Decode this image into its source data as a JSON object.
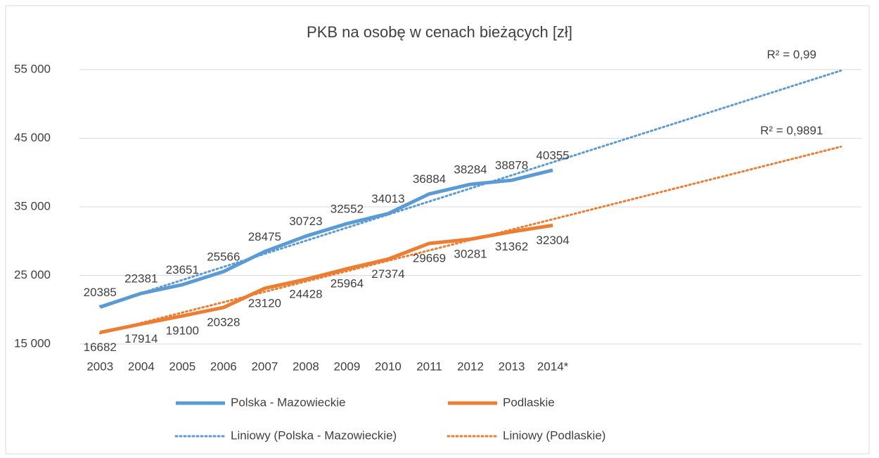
{
  "chart_data": {
    "type": "line",
    "title": "PKB na osobę w cenach bieżących [zł]",
    "categories": [
      "2003",
      "2004",
      "2005",
      "2006",
      "2007",
      "2008",
      "2009",
      "2010",
      "2011",
      "2012",
      "2013",
      "2014*",
      null,
      null,
      null,
      null,
      null,
      null,
      null
    ],
    "series": [
      {
        "name": "Polska - Mazowieckie",
        "color": "#5b9bd5",
        "values": [
          20385,
          22381,
          23651,
          25566,
          28475,
          30723,
          32552,
          34013,
          36884,
          38284,
          38878,
          40355,
          null,
          null,
          null,
          null,
          null,
          null,
          null
        ],
        "trendline": {
          "name": "Liniowy (Polska - Mazowieckie)",
          "r2": 0.99,
          "r2_label": "R² = 0,99"
        }
      },
      {
        "name": "Podlaskie",
        "color": "#ed7d31",
        "values": [
          16682,
          17914,
          19100,
          20328,
          23120,
          24428,
          25964,
          27374,
          29669,
          30281,
          31362,
          32304,
          null,
          null,
          null,
          null,
          null,
          null,
          null
        ],
        "trendline": {
          "name": "Liniowy (Podlaskie)",
          "r2": 0.9891,
          "r2_label": "R² = 0,9891"
        }
      }
    ],
    "ylim": [
      15000,
      55000
    ],
    "yticks": [
      {
        "value": 15000,
        "label": "15 000"
      },
      {
        "value": 25000,
        "label": "25 000"
      },
      {
        "value": 35000,
        "label": "35 000"
      },
      {
        "value": 45000,
        "label": "45 000"
      },
      {
        "value": 55000,
        "label": "55 000"
      }
    ],
    "grid": true
  }
}
